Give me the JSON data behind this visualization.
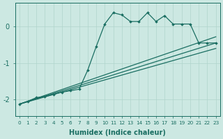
{
  "xlabel": "Humidex (Indice chaleur)",
  "bg_color": "#cce8e2",
  "line_color": "#1a6e62",
  "xlim": [
    -0.5,
    23.5
  ],
  "ylim": [
    -2.45,
    0.65
  ],
  "yticks": [
    0,
    -1,
    -2
  ],
  "xticks": [
    0,
    1,
    2,
    3,
    4,
    5,
    6,
    7,
    8,
    9,
    10,
    11,
    12,
    13,
    14,
    15,
    16,
    17,
    18,
    19,
    20,
    21,
    22,
    23
  ],
  "jagged_x": [
    0,
    1,
    2,
    3,
    4,
    5,
    6,
    7,
    8,
    9,
    10,
    11,
    12,
    13,
    14,
    15,
    16,
    17,
    18,
    19,
    20,
    21,
    22,
    23
  ],
  "jagged_y": [
    -2.13,
    -2.05,
    -1.95,
    -1.92,
    -1.86,
    -1.8,
    -1.76,
    -1.72,
    -1.2,
    -0.55,
    0.07,
    0.38,
    0.32,
    0.14,
    0.14,
    0.38,
    0.14,
    0.3,
    0.07,
    0.07,
    0.07,
    -0.45,
    -0.45,
    -0.45
  ],
  "line1_x": [
    0,
    23
  ],
  "line1_y": [
    -2.13,
    -0.28
  ],
  "line2_x": [
    0,
    23
  ],
  "line2_y": [
    -2.13,
    -0.45
  ],
  "line3_x": [
    0,
    23
  ],
  "line3_y": [
    -2.13,
    -0.6
  ]
}
